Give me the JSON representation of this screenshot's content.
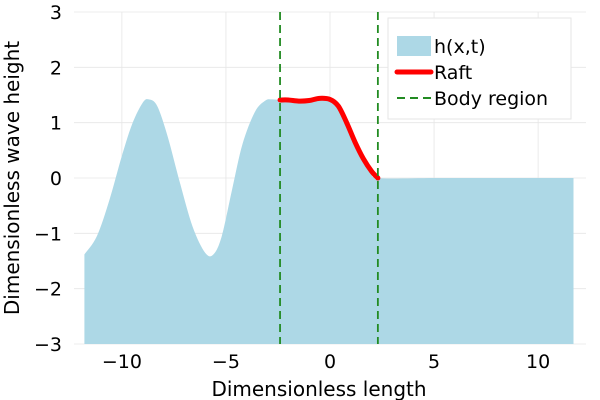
{
  "chart_data": {
    "type": "area",
    "title": "",
    "xlabel": "Dimensionless length",
    "ylabel": "Dimensionless wave height",
    "xlim": [
      -12.3,
      12.3
    ],
    "ylim": [
      -3,
      3
    ],
    "xticks": [
      -10,
      -5,
      0,
      5,
      10
    ],
    "xtick_labels": [
      "−10",
      "−5",
      "0",
      "5",
      "10"
    ],
    "yticks": [
      -3,
      -2,
      -1,
      0,
      1,
      2,
      3
    ],
    "ytick_labels": [
      "−3",
      "−2",
      "−1",
      "0",
      "1",
      "2",
      "3"
    ],
    "grid": true,
    "legend_position": "top-right",
    "series": [
      {
        "name": "h(x,t)",
        "kind": "filled-area",
        "color": "#add8e6",
        "x": [
          -11.8,
          -11.2,
          -10.6,
          -10.0,
          -9.5,
          -9.0,
          -8.7,
          -8.3,
          -7.8,
          -7.2,
          -6.6,
          -6.0,
          -5.6,
          -5.2,
          -4.7,
          -4.2,
          -3.6,
          -3.1,
          -2.8,
          -2.4,
          -2.0,
          -1.5,
          -1.0,
          -0.5,
          0.0,
          0.4,
          0.8,
          1.2,
          1.6,
          2.0,
          2.3,
          5.0,
          8.0,
          11.7
        ],
        "y": [
          -1.38,
          -1.05,
          -0.4,
          0.4,
          0.98,
          1.36,
          1.42,
          1.3,
          0.75,
          -0.1,
          -0.88,
          -1.35,
          -1.38,
          -1.05,
          -0.2,
          0.62,
          1.2,
          1.4,
          1.42,
          1.41,
          1.41,
          1.39,
          1.4,
          1.44,
          1.42,
          1.3,
          1.0,
          0.65,
          0.35,
          0.12,
          0.0,
          0.0,
          0.0,
          0.0
        ]
      },
      {
        "name": "Raft",
        "kind": "line",
        "color": "#ff0000",
        "x": [
          -2.4,
          -2.0,
          -1.5,
          -1.0,
          -0.5,
          0.0,
          0.4,
          0.8,
          1.2,
          1.6,
          2.0,
          2.3
        ],
        "y": [
          1.41,
          1.41,
          1.39,
          1.4,
          1.44,
          1.42,
          1.3,
          1.0,
          0.65,
          0.35,
          0.12,
          0.0
        ]
      },
      {
        "name": "Body region",
        "kind": "vline-dashed",
        "color": "#228b22",
        "x": [
          -2.4,
          2.3
        ]
      }
    ],
    "legend": [
      {
        "label": "h(x,t)",
        "kind": "patch",
        "color": "#add8e6"
      },
      {
        "label": "Raft",
        "kind": "line",
        "color": "#ff0000"
      },
      {
        "label": "Body region",
        "kind": "dashed",
        "color": "#228b22"
      }
    ]
  }
}
